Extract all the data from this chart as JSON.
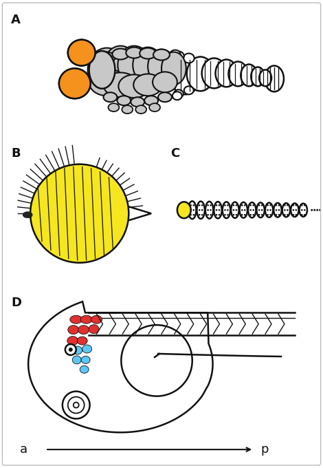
{
  "bg_color": "#ffffff",
  "border_color": "#cccccc",
  "label_A": "A",
  "label_B": "B",
  "label_C": "C",
  "label_D": "D",
  "label_a": "a",
  "label_p": "p",
  "orange_color": "#f5921e",
  "gray_color": "#c8c8c8",
  "yellow_color": "#f5e620",
  "red_color": "#e03030",
  "blue_color": "#5bc8f5",
  "black_color": "#111111",
  "lw": 1.8
}
